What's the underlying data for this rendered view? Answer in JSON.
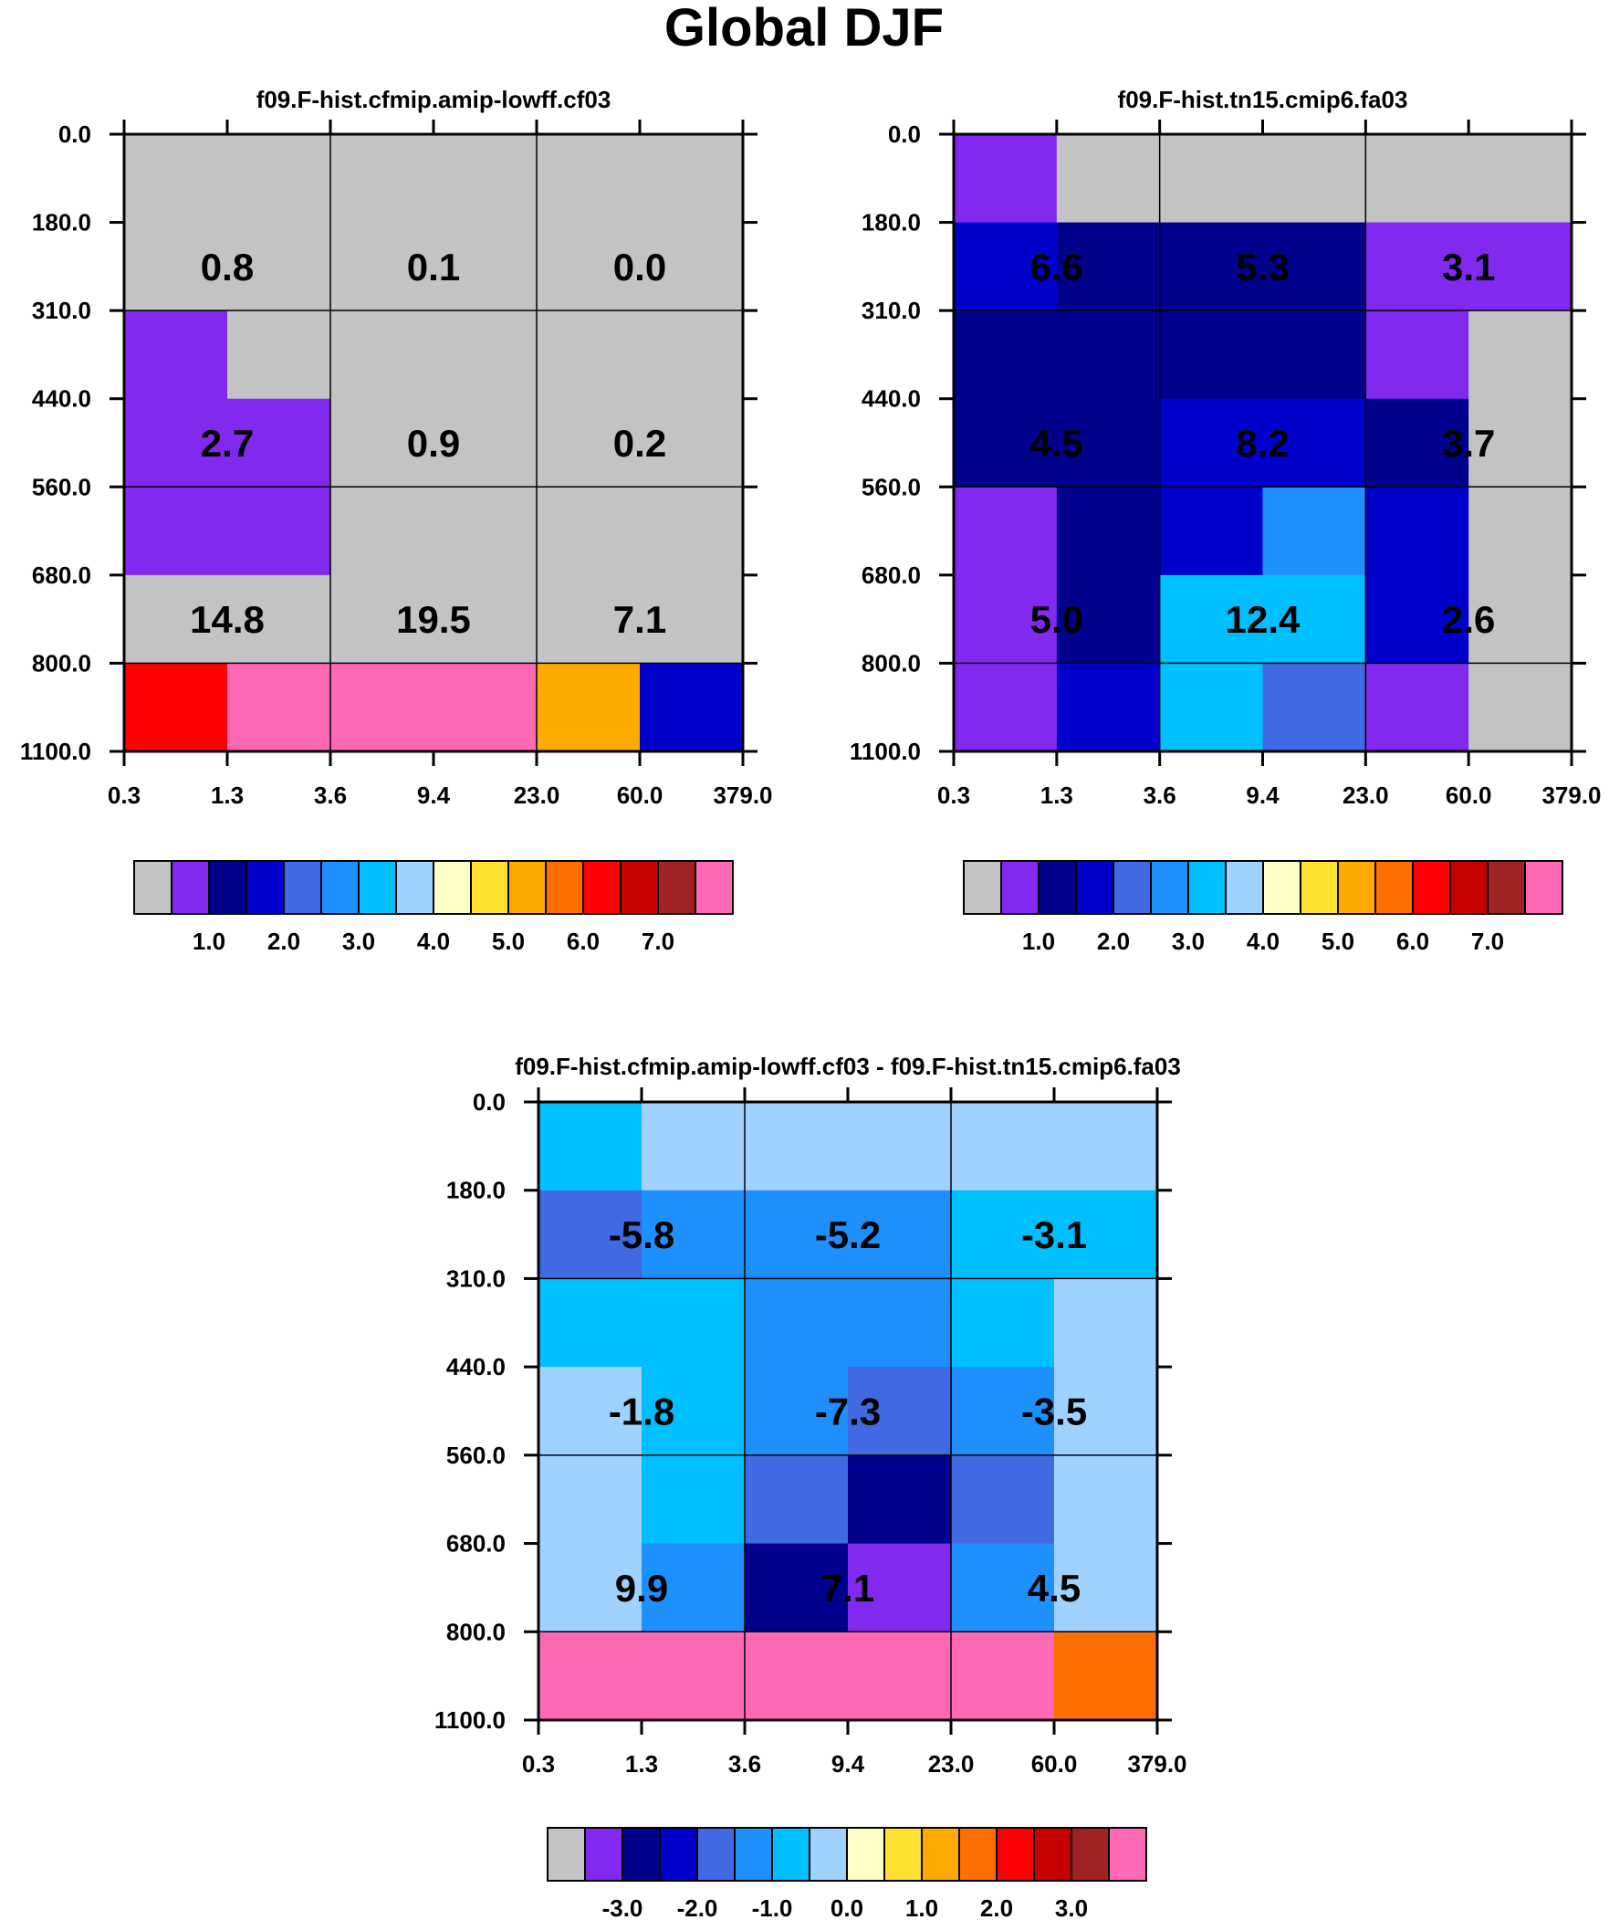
{
  "title": "Global DJF",
  "colors": {
    "palette": [
      "#c3c3c3",
      "#8129ee",
      "#00008c",
      "#0000cd",
      "#4169e1",
      "#1e90ff",
      "#00bfff",
      "#a0d2ff",
      "#ffffc8",
      "#ffe132",
      "#ffaa00",
      "#ff6e00",
      "#ff0000",
      "#c80000",
      "#a02323",
      "#ff69b4"
    ]
  },
  "chart_data": [
    {
      "type": "heatmap",
      "name": "panel-a",
      "title": "f09.F-hist.cfmip.amip-lowff.cf03",
      "x_tick_labels": [
        "0.3",
        "1.3",
        "3.6",
        "9.4",
        "23.0",
        "60.0",
        "379.0"
      ],
      "y_tick_labels": [
        "0.0",
        "180.0",
        "310.0",
        "440.0",
        "560.0",
        "680.0",
        "800.0",
        "1100.0"
      ],
      "cells": [
        [
          0,
          0,
          0,
          0,
          0,
          0
        ],
        [
          0,
          0,
          0,
          0,
          0,
          0
        ],
        [
          1,
          0,
          0,
          0,
          0,
          0
        ],
        [
          1,
          1,
          0,
          0,
          0,
          0
        ],
        [
          1,
          1,
          0,
          0,
          0,
          0
        ],
        [
          0,
          0,
          0,
          0,
          0,
          0
        ],
        [
          12,
          15,
          15,
          15,
          10,
          3
        ]
      ],
      "annotations": [
        [
          "0.8",
          "0.1",
          "0.0"
        ],
        [
          "2.7",
          "0.9",
          "0.2"
        ],
        [
          "14.8",
          "19.5",
          "7.1"
        ]
      ],
      "colorbar_ticks": [
        "1.0",
        "2.0",
        "3.0",
        "4.0",
        "5.0",
        "6.0",
        "7.0"
      ]
    },
    {
      "type": "heatmap",
      "name": "panel-b",
      "title": "f09.F-hist.tn15.cmip6.fa03",
      "x_tick_labels": [
        "0.3",
        "1.3",
        "3.6",
        "9.4",
        "23.0",
        "60.0",
        "379.0"
      ],
      "y_tick_labels": [
        "0.0",
        "180.0",
        "310.0",
        "440.0",
        "560.0",
        "680.0",
        "800.0",
        "1100.0"
      ],
      "cells": [
        [
          1,
          0,
          0,
          0,
          0,
          0
        ],
        [
          3,
          2,
          2,
          2,
          1,
          1
        ],
        [
          2,
          2,
          2,
          2,
          1,
          0
        ],
        [
          2,
          2,
          3,
          3,
          2,
          0
        ],
        [
          1,
          2,
          3,
          5,
          3,
          0
        ],
        [
          1,
          2,
          6,
          6,
          3,
          0
        ],
        [
          1,
          3,
          6,
          4,
          1,
          0
        ]
      ],
      "annotations": [
        [
          "6.6",
          "5.3",
          "3.1"
        ],
        [
          "4.5",
          "8.2",
          "3.7"
        ],
        [
          "5.0",
          "12.4",
          "2.6"
        ]
      ],
      "colorbar_ticks": [
        "1.0",
        "2.0",
        "3.0",
        "4.0",
        "5.0",
        "6.0",
        "7.0"
      ]
    },
    {
      "type": "heatmap",
      "name": "panel-diff",
      "title": "f09.F-hist.cfmip.amip-lowff.cf03 - f09.F-hist.tn15.cmip6.fa03",
      "x_tick_labels": [
        "0.3",
        "1.3",
        "3.6",
        "9.4",
        "23.0",
        "60.0",
        "379.0"
      ],
      "y_tick_labels": [
        "0.0",
        "180.0",
        "310.0",
        "440.0",
        "560.0",
        "680.0",
        "800.0",
        "1100.0"
      ],
      "cells": [
        [
          6,
          7,
          7,
          7,
          7,
          7
        ],
        [
          4,
          5,
          5,
          5,
          6,
          6
        ],
        [
          6,
          6,
          5,
          5,
          6,
          7
        ],
        [
          7,
          6,
          5,
          4,
          5,
          7
        ],
        [
          7,
          6,
          4,
          2,
          4,
          7
        ],
        [
          7,
          5,
          2,
          1,
          5,
          7
        ],
        [
          15,
          15,
          15,
          15,
          15,
          11
        ]
      ],
      "annotations": [
        [
          "-5.8",
          "-5.2",
          "-3.1"
        ],
        [
          "-1.8",
          "-7.3",
          "-3.5"
        ],
        [
          "9.9",
          "7.1",
          "4.5"
        ]
      ],
      "colorbar_ticks": [
        "-3.0",
        "-2.0",
        "-1.0",
        "0.0",
        "1.0",
        "2.0",
        "3.0"
      ]
    }
  ]
}
